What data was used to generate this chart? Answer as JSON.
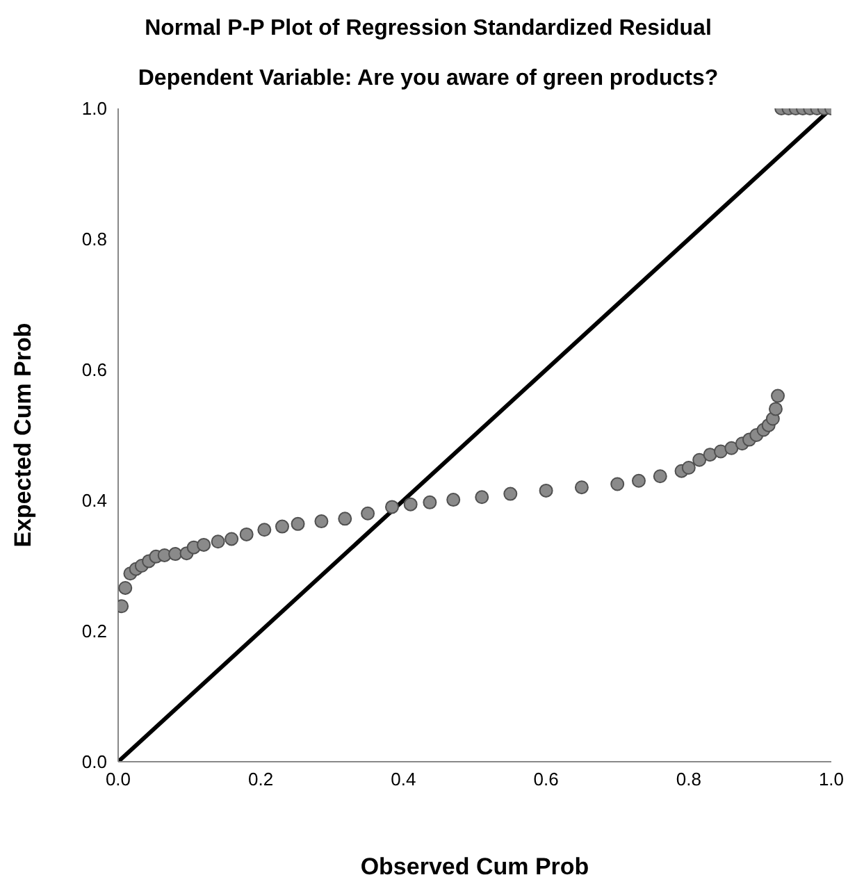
{
  "chart_data": {
    "type": "scatter",
    "title": "Normal P-P Plot of Regression Standardized Residual",
    "subtitle": "Dependent Variable: Are you aware of green products?",
    "xlabel": "Observed Cum Prob",
    "ylabel": "Expected Cum Prob",
    "series": [
      {
        "color": "#505050",
        "marker": "circle",
        "x": [
          0.005,
          0.01,
          0.017,
          0.025,
          0.033,
          0.043,
          0.053,
          0.065,
          0.08,
          0.096,
          0.106,
          0.12,
          0.14,
          0.159,
          0.18,
          0.205,
          0.23,
          0.252,
          0.285,
          0.318,
          0.35,
          0.384,
          0.41,
          0.437,
          0.47,
          0.51,
          0.55,
          0.6,
          0.65,
          0.7,
          0.73,
          0.76,
          0.79,
          0.8,
          0.815,
          0.83,
          0.845,
          0.86,
          0.875,
          0.885,
          0.895,
          0.905,
          0.912,
          0.918,
          0.922,
          0.925,
          0.93,
          0.94,
          0.95,
          0.96,
          0.97,
          0.98,
          0.99,
          1.0
        ],
        "values": [
          0.238,
          0.266,
          0.288,
          0.295,
          0.3,
          0.307,
          0.314,
          0.316,
          0.318,
          0.319,
          0.328,
          0.332,
          0.337,
          0.341,
          0.348,
          0.355,
          0.36,
          0.364,
          0.368,
          0.372,
          0.38,
          0.39,
          0.394,
          0.397,
          0.401,
          0.405,
          0.41,
          0.415,
          0.42,
          0.425,
          0.43,
          0.437,
          0.445,
          0.45,
          0.462,
          0.47,
          0.475,
          0.48,
          0.487,
          0.493,
          0.5,
          0.508,
          0.515,
          0.525,
          0.54,
          0.56,
          1.0,
          1.0,
          1.0,
          1.0,
          1.0,
          1.0,
          1.0,
          1.0
        ]
      },
      {
        "type": "line",
        "marker": "none",
        "color": "#000000",
        "x": [
          0,
          1
        ],
        "values": [
          0,
          1
        ]
      }
    ],
    "line_style": "solid",
    "grid": false,
    "legend": false,
    "xlim": [
      0,
      1
    ],
    "ylim": [
      0,
      1
    ],
    "xticks": [
      {
        "value": 0,
        "label": "0.0"
      },
      {
        "value": 0.2,
        "label": "0.2"
      },
      {
        "value": 0.4,
        "label": "0.4"
      },
      {
        "value": 0.6,
        "label": "0.6"
      },
      {
        "value": 0.8,
        "label": "0.8"
      },
      {
        "value": 1,
        "label": "1.0"
      }
    ],
    "yticks": [
      {
        "value": 0,
        "label": "0.0"
      },
      {
        "value": 0.2,
        "label": "0.2"
      },
      {
        "value": 0.4,
        "label": "0.4"
      },
      {
        "value": 0.6,
        "label": "0.6"
      },
      {
        "value": 0.8,
        "label": "0.8"
      },
      {
        "value": 1,
        "label": "1.0"
      }
    ]
  }
}
